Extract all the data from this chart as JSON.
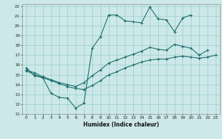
{
  "xlabel": "Humidex (Indice chaleur)",
  "background_color": "#cce8e8",
  "grid_color": "#99cccc",
  "line_color": "#1a6b6b",
  "xlim": [
    -0.5,
    23.5
  ],
  "ylim": [
    11,
    22.2
  ],
  "xticks": [
    0,
    1,
    2,
    3,
    4,
    5,
    6,
    7,
    8,
    9,
    10,
    11,
    12,
    13,
    14,
    15,
    16,
    17,
    18,
    19,
    20,
    21,
    22,
    23
  ],
  "yticks": [
    11,
    12,
    13,
    14,
    15,
    16,
    17,
    18,
    19,
    20,
    21,
    22
  ],
  "line1_x": [
    0,
    1,
    2,
    3,
    4,
    5,
    6,
    7,
    8,
    9,
    10,
    11,
    12,
    13,
    14,
    15,
    16,
    17,
    18,
    19,
    20
  ],
  "line1_y": [
    15.7,
    14.9,
    14.7,
    13.1,
    12.7,
    12.6,
    11.6,
    12.1,
    17.7,
    18.9,
    21.1,
    21.1,
    20.5,
    20.4,
    20.3,
    21.9,
    20.7,
    20.6,
    19.4,
    20.8,
    21.1
  ],
  "line2_x": [
    0,
    1,
    2,
    3,
    4,
    5,
    6,
    7,
    8,
    9,
    10,
    11,
    12,
    13,
    14,
    15,
    16,
    17,
    18,
    19,
    20,
    21,
    22
  ],
  "line2_y": [
    15.5,
    15.2,
    14.8,
    14.5,
    14.2,
    14.0,
    13.8,
    14.2,
    14.9,
    15.5,
    16.2,
    16.5,
    16.8,
    17.1,
    17.4,
    17.8,
    17.6,
    17.5,
    18.1,
    17.9,
    17.7,
    17.0,
    17.5
  ],
  "line3_x": [
    0,
    1,
    2,
    3,
    4,
    5,
    6,
    7,
    8,
    9,
    10,
    11,
    12,
    13,
    14,
    15,
    16,
    17,
    18,
    19,
    20,
    21,
    22,
    23
  ],
  "line3_y": [
    15.4,
    15.0,
    14.7,
    14.4,
    14.1,
    13.8,
    13.6,
    13.5,
    13.9,
    14.4,
    15.0,
    15.3,
    15.7,
    16.0,
    16.3,
    16.5,
    16.6,
    16.6,
    16.8,
    16.9,
    16.8,
    16.7,
    16.8,
    17.0
  ]
}
